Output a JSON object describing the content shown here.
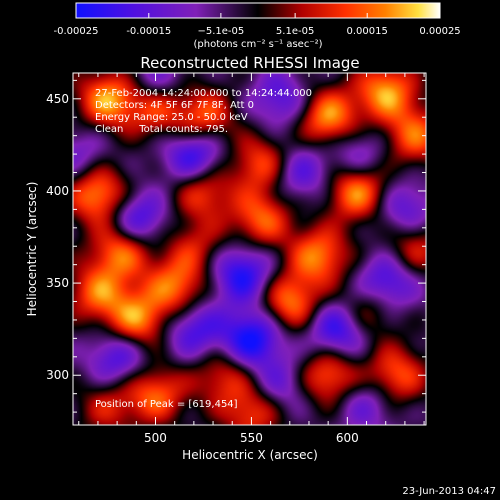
{
  "chart_data": {
    "type": "heatmap",
    "title": "Reconstructed RHESSI Image",
    "xlabel": "Heliocentric X (arcsec)",
    "ylabel": "Heliocentric Y (arcsec)",
    "xlim": [
      457,
      641
    ],
    "ylim": [
      273,
      464
    ],
    "x_ticks": [
      500,
      550,
      600
    ],
    "y_ticks": [
      300,
      350,
      400,
      450
    ],
    "colorbar": {
      "range": [
        -0.00025,
        0.00025
      ],
      "ticks": [
        -0.00025,
        -0.00015,
        -5.1e-05,
        5.1e-05,
        0.00015,
        0.00025
      ],
      "tick_labels": [
        "-0.00025",
        "-0.00015",
        "−5.1e-05",
        "5.1e-05",
        "0.00015",
        "0.00025"
      ],
      "units_label": "(photons cm⁻² s⁻¹ asec⁻²)"
    },
    "annotations": [
      "27-Feb-2004 14:24:00.000 to 14:24:44.000",
      "Detectors: 4F 5F 6F 7F 8F, Att 0",
      "Energy Range: 25.0 - 50.0 keV",
      "Clean     Total counts: 795."
    ],
    "peak_label": "Position of Peak = [619,454]",
    "peak": [
      619,
      454
    ],
    "colormap": [
      "#1010ff",
      "#5010e0",
      "#9020b0",
      "#000000",
      "#b00000",
      "#ff3000",
      "#ff8000",
      "#ffe040",
      "#ffffff"
    ],
    "blobs_note_free": true,
    "sources": [
      {
        "x": 475,
        "y": 450,
        "v": 1.0
      },
      {
        "x": 470,
        "y": 398,
        "v": 1.0
      },
      {
        "x": 482,
        "y": 368,
        "v": 0.9
      },
      {
        "x": 490,
        "y": 330,
        "v": 0.95
      },
      {
        "x": 470,
        "y": 345,
        "v": 0.8
      },
      {
        "x": 510,
        "y": 348,
        "v": 0.85
      },
      {
        "x": 525,
        "y": 400,
        "v": 0.7
      },
      {
        "x": 555,
        "y": 385,
        "v": 0.8
      },
      {
        "x": 555,
        "y": 415,
        "v": 0.75
      },
      {
        "x": 525,
        "y": 440,
        "v": 0.8
      },
      {
        "x": 500,
        "y": 445,
        "v": 0.7
      },
      {
        "x": 590,
        "y": 440,
        "v": 1.0
      },
      {
        "x": 605,
        "y": 400,
        "v": 1.0
      },
      {
        "x": 620,
        "y": 454,
        "v": 1.0
      },
      {
        "x": 635,
        "y": 430,
        "v": 0.8
      },
      {
        "x": 585,
        "y": 365,
        "v": 0.9
      },
      {
        "x": 570,
        "y": 340,
        "v": 0.9
      },
      {
        "x": 590,
        "y": 300,
        "v": 0.85
      },
      {
        "x": 610,
        "y": 335,
        "v": 0.6
      },
      {
        "x": 625,
        "y": 300,
        "v": 0.8
      },
      {
        "x": 500,
        "y": 290,
        "v": 0.8
      },
      {
        "x": 535,
        "y": 300,
        "v": 0.6
      },
      {
        "x": 550,
        "y": 280,
        "v": 0.7
      },
      {
        "x": 475,
        "y": 283,
        "v": 0.5
      },
      {
        "x": 520,
        "y": 370,
        "v": 0.5
      },
      {
        "x": 635,
        "y": 370,
        "v": 0.6
      },
      {
        "x": 500,
        "y": 460,
        "v": -0.5
      },
      {
        "x": 520,
        "y": 420,
        "v": -0.9
      },
      {
        "x": 490,
        "y": 385,
        "v": -0.8
      },
      {
        "x": 545,
        "y": 355,
        "v": -0.9
      },
      {
        "x": 550,
        "y": 320,
        "v": -1.0
      },
      {
        "x": 520,
        "y": 325,
        "v": -0.7
      },
      {
        "x": 595,
        "y": 325,
        "v": -0.9
      },
      {
        "x": 620,
        "y": 350,
        "v": -0.8
      },
      {
        "x": 630,
        "y": 390,
        "v": -0.6
      },
      {
        "x": 575,
        "y": 410,
        "v": -0.6
      },
      {
        "x": 565,
        "y": 450,
        "v": -0.6
      },
      {
        "x": 480,
        "y": 310,
        "v": -0.7
      },
      {
        "x": 565,
        "y": 295,
        "v": -0.5
      },
      {
        "x": 610,
        "y": 285,
        "v": -0.5
      },
      {
        "x": 460,
        "y": 420,
        "v": -0.4
      },
      {
        "x": 605,
        "y": 420,
        "v": -0.5
      }
    ]
  },
  "footer": {
    "date": "23-Jun-2013 04:47"
  }
}
